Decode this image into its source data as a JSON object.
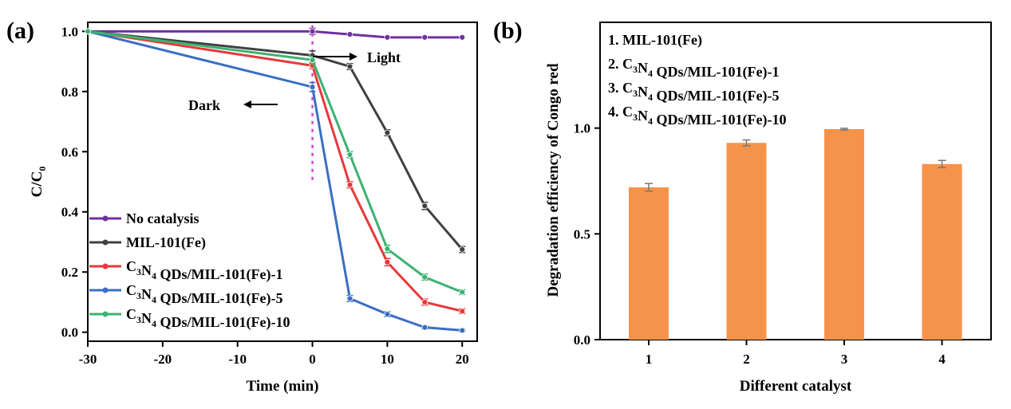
{
  "chart_data": [
    {
      "panel_label": "(a)",
      "type": "line",
      "xlabel": "Time (min)",
      "ylabel": "C/C",
      "ylabel_sub": "0",
      "xlim": [
        -30,
        22
      ],
      "ylim": [
        -0.03,
        1.03
      ],
      "xticks": [
        -30,
        -20,
        -10,
        0,
        10,
        20
      ],
      "xtick_labels": [
        "-30",
        "-20",
        "-10",
        "0",
        "10",
        "20"
      ],
      "yticks": [
        0.0,
        0.2,
        0.4,
        0.6,
        0.8,
        1.0
      ],
      "ytick_labels": [
        "0.0",
        "0.2",
        "0.4",
        "0.6",
        "0.8",
        "1.0"
      ],
      "x": [
        -30,
        0,
        5,
        10,
        15,
        20
      ],
      "series": [
        {
          "name": "No catalysis",
          "legend_parts": [
            [
              "No catalysis",
              ""
            ]
          ],
          "color": "#7030a0",
          "values": [
            1.0,
            1.0,
            0.99,
            0.98,
            0.98,
            0.98
          ],
          "errors": [
            0,
            0.01,
            0,
            0,
            0,
            0
          ]
        },
        {
          "name": " MIL-101(Fe)",
          "legend_parts": [
            [
              " MIL-101(Fe)",
              ""
            ]
          ],
          "color": "#404040",
          "values": [
            1.0,
            0.92,
            0.883,
            0.663,
            0.42,
            0.275
          ],
          "errors": [
            0,
            0.015,
            0.01,
            0.01,
            0.012,
            0.01
          ]
        },
        {
          "name": "C3N4 QDs/MIL-101(Fe)-1",
          "legend_parts": [
            [
              "C",
              "3"
            ],
            [
              "N",
              "4"
            ],
            [
              " QDs/MIL-101(Fe)-1",
              ""
            ]
          ],
          "color": "#e8393b",
          "values": [
            1.0,
            0.886,
            0.49,
            0.233,
            0.1,
            0.07
          ],
          "errors": [
            0,
            0.01,
            0.01,
            0.012,
            0.01,
            0.008
          ]
        },
        {
          "name": "C3N4 QDs/MIL-101(Fe)-5",
          "legend_parts": [
            [
              "C",
              "3"
            ],
            [
              "N",
              "4"
            ],
            [
              " QDs/MIL-101(Fe)-5",
              ""
            ]
          ],
          "color": "#3a6fc2",
          "values": [
            1.0,
            0.815,
            0.112,
            0.06,
            0.016,
            0.006
          ],
          "errors": [
            0,
            0.015,
            0.01,
            0.008,
            0.005,
            0.004
          ]
        },
        {
          "name": "C3N4 QDs/MIL-101(Fe)-10",
          "legend_parts": [
            [
              "C",
              "3"
            ],
            [
              "N",
              "4"
            ],
            [
              " QDs/MIL-101(Fe)-10",
              ""
            ]
          ],
          "color": "#3cb371",
          "values": [
            1.0,
            0.905,
            0.59,
            0.277,
            0.183,
            0.133
          ],
          "errors": [
            0,
            0.012,
            0.01,
            0.012,
            0.01,
            0.008
          ]
        }
      ],
      "annotations": {
        "light_label": "Light",
        "dark_label": "Dark",
        "divider_x": 0,
        "divider_color": "#cc44cc"
      }
    },
    {
      "panel_label": "(b)",
      "type": "bar",
      "xlabel": "Different catalyst",
      "ylabel": "Degradation efficiency of Congo red",
      "categories": [
        "1",
        "2",
        "3",
        "4"
      ],
      "values": [
        0.72,
        0.93,
        0.995,
        0.83
      ],
      "errors": [
        0.018,
        0.014,
        0.004,
        0.017
      ],
      "ylim": [
        0.0,
        1.5
      ],
      "yticks": [
        0.0,
        0.5,
        1.0
      ],
      "ytick_labels": [
        "0.0",
        "0.5",
        "1.0"
      ],
      "bar_color": "#f5934a",
      "legend_lines": [
        [
          [
            "1. MIL-101(Fe)",
            ""
          ]
        ],
        [
          [
            "2. C",
            "3"
          ],
          [
            "N",
            "4"
          ],
          [
            " QDs/MIL-101(Fe)-1",
            ""
          ]
        ],
        [
          [
            "3. C",
            "3"
          ],
          [
            "N",
            "4"
          ],
          [
            " QDs/MIL-101(Fe)-5",
            ""
          ]
        ],
        [
          [
            "4. C",
            "3"
          ],
          [
            "N",
            "4"
          ],
          [
            " QDs/MIL-101(Fe)-10",
            ""
          ]
        ]
      ]
    }
  ]
}
